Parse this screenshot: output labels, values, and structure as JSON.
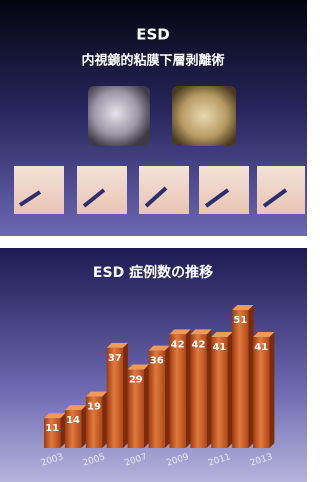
{
  "slide": {
    "title": "ESD",
    "subtitle": "内視鏡的粘膜下層剥離術"
  },
  "chart_data": {
    "type": "bar",
    "title": "ESD 症例数の推移",
    "categories": [
      "2003",
      null,
      "2005",
      null,
      "2007",
      null,
      "2009",
      null,
      "2011",
      null,
      "2013"
    ],
    "values": [
      11,
      14,
      19,
      37,
      29,
      36,
      42,
      42,
      41,
      51,
      41
    ],
    "color": "#c8551e"
  }
}
